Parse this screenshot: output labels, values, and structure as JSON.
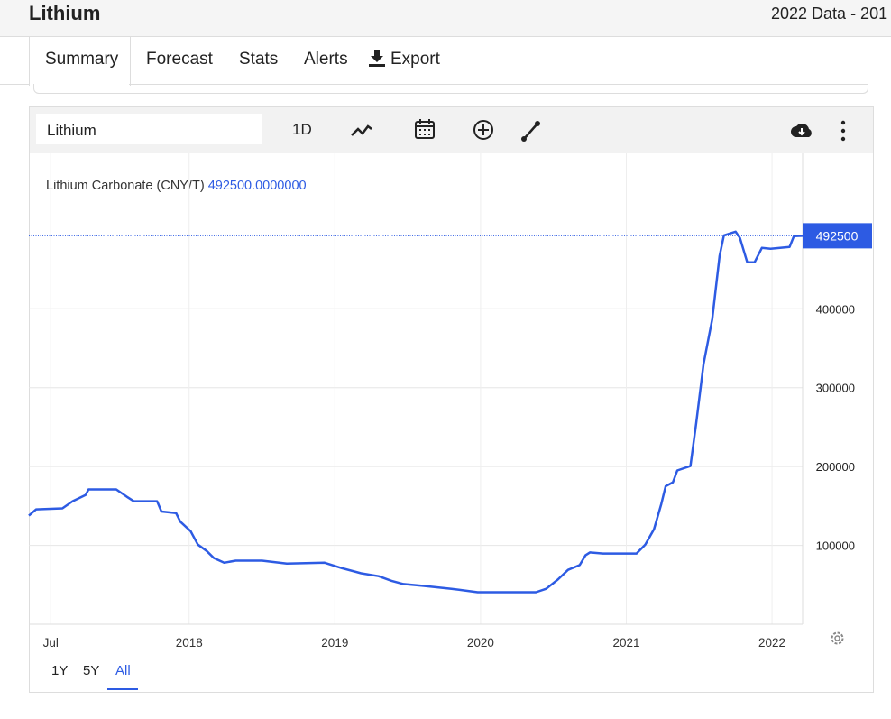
{
  "header": {
    "title": "Lithium",
    "subtitle": "2022 Data - 201"
  },
  "tabs": [
    "Summary",
    "Forecast",
    "Stats",
    "Alerts",
    "Export"
  ],
  "toolbar": {
    "search": "Lithium",
    "interval": "1D"
  },
  "ranges": [
    "1Y",
    "5Y",
    "All"
  ],
  "chart_data": {
    "type": "line",
    "legend_value": "492500.0000000",
    "series": [
      {
        "name": "Lithium Carbonate (CNY/T)",
        "color": "#2d5be3",
        "x": [
          2016.9,
          2016.95,
          2017.13,
          2017.2,
          2017.29,
          2017.31,
          2017.5,
          2017.57,
          2017.62,
          2017.78,
          2017.81,
          2017.91,
          2017.94,
          2018.01,
          2018.06,
          2018.12,
          2018.17,
          2018.24,
          2018.32,
          2018.5,
          2018.67,
          2018.93,
          2019.05,
          2019.18,
          2019.3,
          2019.39,
          2019.47,
          2019.61,
          2019.8,
          2019.98,
          2020.04,
          2020.38,
          2020.45,
          2020.53,
          2020.6,
          2020.68,
          2020.72,
          2020.75,
          2020.84,
          2021.07,
          2021.13,
          2021.19,
          2021.24,
          2021.27,
          2021.32,
          2021.35,
          2021.44,
          2021.48,
          2021.53,
          2021.59,
          2021.64,
          2021.67,
          2021.75,
          2021.78,
          2021.83,
          2021.88,
          2021.93,
          2021.99,
          2022.12,
          2022.15,
          2022.21
        ],
        "values": [
          137700,
          145700,
          147000,
          156000,
          164000,
          171000,
          171000,
          162000,
          156000,
          156000,
          143000,
          141000,
          130000,
          118000,
          101000,
          93000,
          84000,
          78000,
          80600,
          80600,
          77000,
          78000,
          71000,
          64600,
          61000,
          55000,
          51000,
          48600,
          45000,
          40600,
          40600,
          40600,
          45000,
          56600,
          69000,
          75000,
          87400,
          91000,
          89700,
          89700,
          101000,
          120600,
          152600,
          175000,
          180000,
          195000,
          200600,
          255000,
          329700,
          386900,
          466900,
          493000,
          497700,
          489700,
          458900,
          458900,
          477100,
          476000,
          478300,
          492000,
          492500
        ]
      }
    ],
    "xlim": [
      2016.9,
      2022.21
    ],
    "xticks": [
      {
        "value": 2017.05,
        "label": "Jul"
      },
      2018,
      2019,
      2020,
      2021,
      2022
    ],
    "ylim": [
      0,
      597000
    ],
    "yticks": [
      100000,
      200000,
      300000,
      400000
    ],
    "grid": true
  }
}
